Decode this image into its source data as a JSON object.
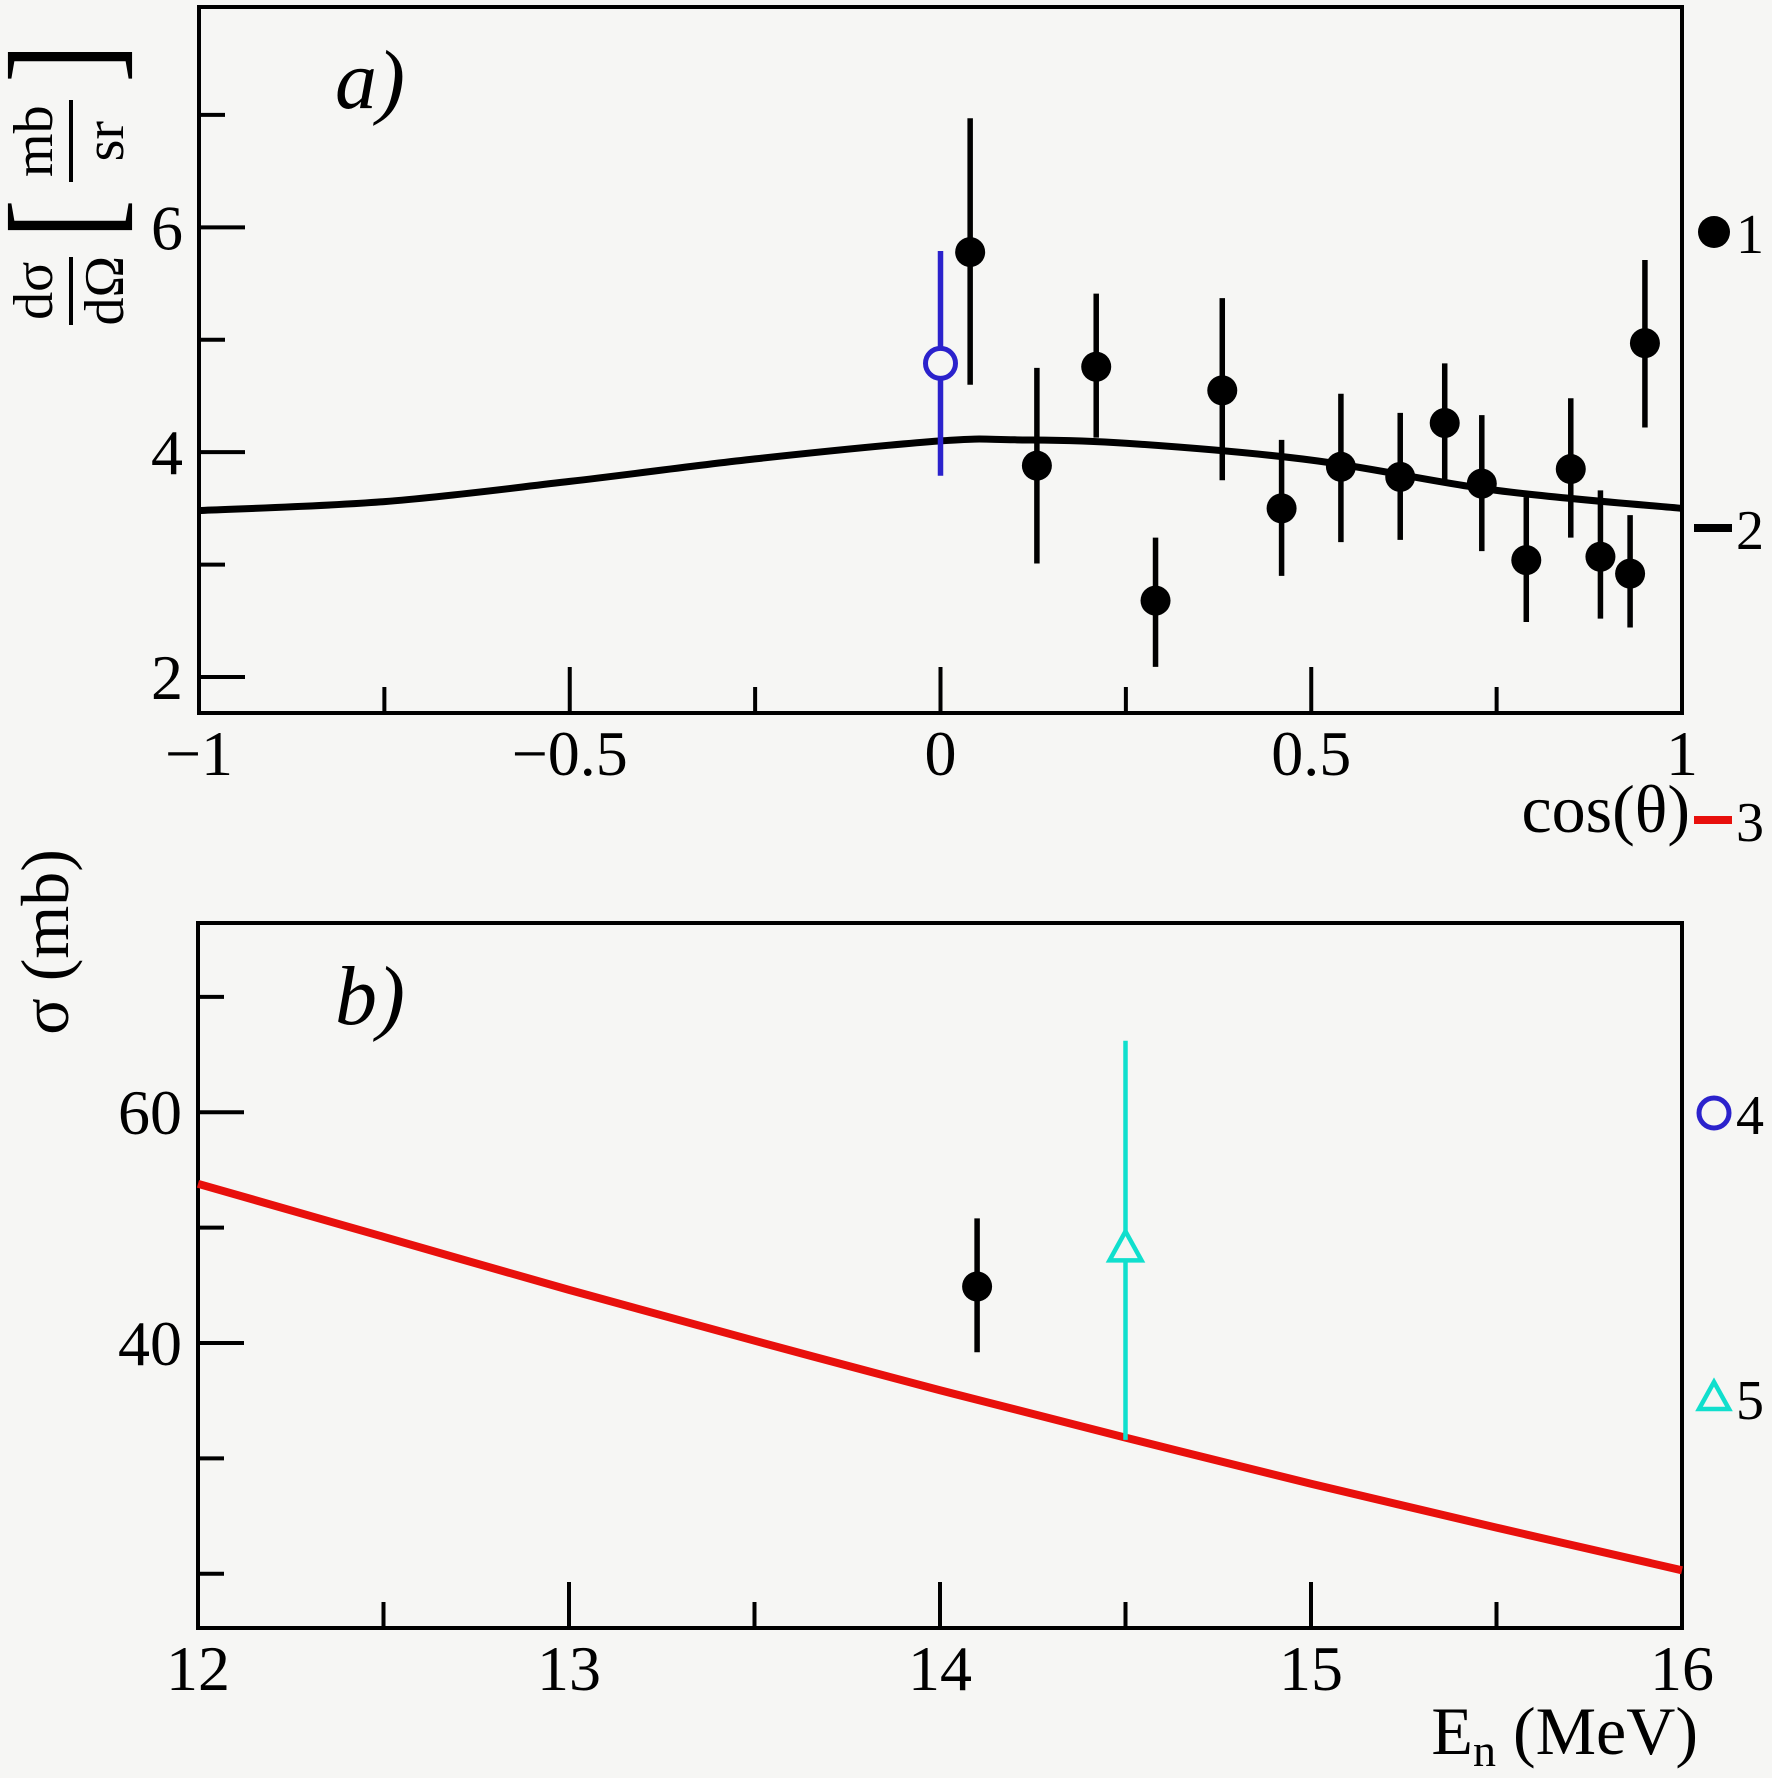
{
  "figure": {
    "background": "#f6f6f4",
    "frame_color": "#000000"
  },
  "legend": {
    "entries": [
      {
        "label": "1",
        "marker": "filled-circle",
        "color": "#000000"
      },
      {
        "label": "2",
        "marker": "line",
        "color": "#000000"
      },
      {
        "label": "3",
        "marker": "line",
        "color": "#e8100c"
      },
      {
        "label": "4",
        "marker": "open-circle",
        "color": "#2b22cc"
      },
      {
        "label": "5",
        "marker": "open-triangle",
        "color": "#10dfcd"
      }
    ]
  },
  "chart_data": [
    {
      "type": "scatter",
      "panel_label": "a)",
      "xlabel": "cos(θ)",
      "ylabel": "dσ/dΩ [mb/sr]",
      "ylabel_parts": {
        "num": "dσ",
        "den": "dΩ",
        "bracket_open": "[",
        "unit_num": "mb",
        "unit_den": "sr",
        "bracket_close": "]"
      },
      "xlim": [
        -1,
        1
      ],
      "ylim": [
        1.68,
        7.96
      ],
      "grid": false,
      "x_major_ticks": [
        {
          "v": -1,
          "label": "−1"
        },
        {
          "v": -0.5,
          "label": "−0.5"
        },
        {
          "v": 0,
          "label": "0"
        },
        {
          "v": 0.5,
          "label": "0.5"
        },
        {
          "v": 1,
          "label": "1"
        }
      ],
      "x_minor_ticks": [
        -0.75,
        -0.25,
        0.25,
        0.75
      ],
      "y_major_ticks": [
        {
          "v": 2,
          "label": "2"
        },
        {
          "v": 4,
          "label": "4"
        },
        {
          "v": 6,
          "label": "6"
        }
      ],
      "y_minor_ticks": [
        3,
        5,
        7
      ],
      "series": [
        {
          "legend": "2",
          "kind": "curve",
          "color": "#000000",
          "width": 7,
          "points": [
            [
              -1,
              3.48
            ],
            [
              -0.75,
              3.56
            ],
            [
              -0.5,
              3.74
            ],
            [
              -0.25,
              3.94
            ],
            [
              0,
              4.1
            ],
            [
              0.1,
              4.11
            ],
            [
              0.25,
              4.08
            ],
            [
              0.5,
              3.93
            ],
            [
              0.75,
              3.66
            ],
            [
              1,
              3.5
            ]
          ]
        },
        {
          "legend": "4",
          "kind": "scatter",
          "marker": "open-circle",
          "color": "#2b22cc",
          "points": [
            {
              "x": 0.0,
              "y": 4.79,
              "eu": 1.0,
              "ed": 1.0
            }
          ]
        },
        {
          "legend": "1",
          "kind": "scatter",
          "marker": "filled-circle",
          "color": "#000000",
          "points": [
            {
              "x": 0.04,
              "y": 5.78,
              "eu": 1.19,
              "ed": 1.18
            },
            {
              "x": 0.13,
              "y": 3.88,
              "eu": 0.87,
              "ed": 0.87
            },
            {
              "x": 0.21,
              "y": 4.76,
              "eu": 0.65,
              "ed": 0.63
            },
            {
              "x": 0.29,
              "y": 2.68,
              "eu": 0.56,
              "ed": 0.59
            },
            {
              "x": 0.38,
              "y": 4.55,
              "eu": 0.82,
              "ed": 0.8
            },
            {
              "x": 0.46,
              "y": 3.5,
              "eu": 0.61,
              "ed": 0.6
            },
            {
              "x": 0.54,
              "y": 3.87,
              "eu": 0.65,
              "ed": 0.67
            },
            {
              "x": 0.62,
              "y": 3.78,
              "eu": 0.57,
              "ed": 0.56
            },
            {
              "x": 0.68,
              "y": 4.26,
              "eu": 0.53,
              "ed": 0.51
            },
            {
              "x": 0.73,
              "y": 3.72,
              "eu": 0.61,
              "ed": 0.6
            },
            {
              "x": 0.79,
              "y": 3.04,
              "eu": 0.56,
              "ed": 0.55
            },
            {
              "x": 0.85,
              "y": 3.85,
              "eu": 0.63,
              "ed": 0.61
            },
            {
              "x": 0.89,
              "y": 3.07,
              "eu": 0.59,
              "ed": 0.55
            },
            {
              "x": 0.93,
              "y": 2.92,
              "eu": 0.52,
              "ed": 0.48
            },
            {
              "x": 0.95,
              "y": 4.97,
              "eu": 0.74,
              "ed": 0.75
            }
          ]
        }
      ]
    },
    {
      "type": "scatter",
      "panel_label": "b)",
      "xlabel": "En (MeV)",
      "xlabel_parts": {
        "base": "E",
        "sub": "n",
        "tail": " (MeV)"
      },
      "ylabel": "σ (mb)",
      "xlim": [
        12,
        16
      ],
      "ylim": [
        15.3,
        76.4
      ],
      "grid": false,
      "x_major_ticks": [
        {
          "v": 12,
          "label": "12"
        },
        {
          "v": 13,
          "label": "13"
        },
        {
          "v": 14,
          "label": "14"
        },
        {
          "v": 15,
          "label": "15"
        },
        {
          "v": 16,
          "label": "16"
        }
      ],
      "x_minor_ticks": [
        12.5,
        13.5,
        14.5,
        15.5
      ],
      "y_major_ticks": [
        {
          "v": 40,
          "label": "40"
        },
        {
          "v": 60,
          "label": "60"
        }
      ],
      "y_minor_ticks": [
        20,
        30,
        50,
        70
      ],
      "series": [
        {
          "legend": "3",
          "kind": "curve",
          "color": "#e8100c",
          "width": 8,
          "points": [
            [
              12,
              53.8
            ],
            [
              12.5,
              49.2
            ],
            [
              13,
              44.6
            ],
            [
              13.5,
              40.2
            ],
            [
              14,
              35.9
            ],
            [
              14.5,
              31.8
            ],
            [
              15,
              27.8
            ],
            [
              15.5,
              24.0
            ],
            [
              16,
              20.3
            ]
          ]
        },
        {
          "legend": "5",
          "kind": "scatter",
          "marker": "open-triangle",
          "color": "#10dfcd",
          "points": [
            {
              "x": 14.5,
              "y": 48.2,
              "eu": 18.0,
              "ed": 16.6
            }
          ]
        },
        {
          "legend": "1",
          "kind": "scatter",
          "marker": "filled-circle",
          "color": "#000000",
          "points": [
            {
              "x": 14.1,
              "y": 44.9,
              "eu": 5.9,
              "ed": 5.7
            }
          ]
        }
      ]
    }
  ]
}
